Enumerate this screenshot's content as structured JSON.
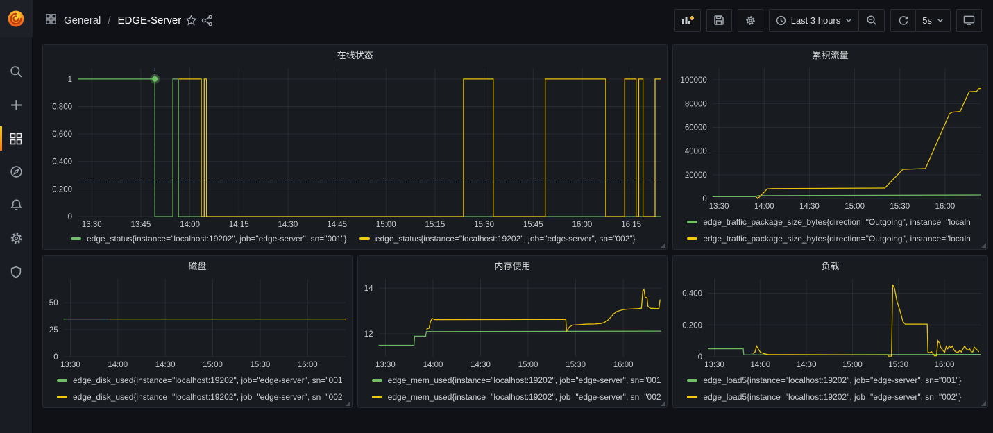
{
  "colors": {
    "series_green": "#73bf69",
    "series_yellow": "#f2cc0c",
    "annotation_dash": "#87a1c4",
    "active_indicator_orange": "#ff780a"
  },
  "sidebar": {
    "icons": [
      "grafana-logo",
      "search",
      "add",
      "dashboards",
      "explore",
      "alerting",
      "configuration",
      "server-admin"
    ],
    "active_item": "dashboards"
  },
  "header": {
    "breadcrumb": {
      "section": "General",
      "separator": "/",
      "title": "EDGE-Server"
    },
    "toolbar": {
      "time_range_label": "Last 3 hours",
      "refresh_interval": "5s"
    }
  },
  "panels": [
    {
      "title": "在线状态",
      "legend_layout": "row",
      "legend": [
        {
          "color": "#73bf69",
          "label": "edge_status{instance=\"localhost:19202\", job=\"edge-server\", sn=\"001\"}"
        },
        {
          "color": "#f2cc0c",
          "label": "edge_status{instance=\"localhost:19202\", job=\"edge-server\", sn=\"002\"}"
        }
      ]
    },
    {
      "title": "累积流量",
      "legend_layout": "column",
      "legend": [
        {
          "color": "#73bf69",
          "label": "edge_traffic_package_size_bytes{direction=\"Outgoing\", instance=\"localh"
        },
        {
          "color": "#f2cc0c",
          "label": "edge_traffic_package_size_bytes{direction=\"Outgoing\", instance=\"localh"
        }
      ]
    },
    {
      "title": "磁盘",
      "legend_layout": "column",
      "legend": [
        {
          "color": "#73bf69",
          "label": "edge_disk_used{instance=\"localhost:19202\", job=\"edge-server\", sn=\"001"
        },
        {
          "color": "#f2cc0c",
          "label": "edge_disk_used{instance=\"localhost:19202\", job=\"edge-server\", sn=\"002"
        }
      ]
    },
    {
      "title": "内存使用",
      "legend_layout": "column",
      "legend": [
        {
          "color": "#73bf69",
          "label": "edge_mem_used{instance=\"localhost:19202\", job=\"edge-server\", sn=\"001"
        },
        {
          "color": "#f2cc0c",
          "label": "edge_mem_used{instance=\"localhost:19202\", job=\"edge-server\", sn=\"002"
        }
      ]
    },
    {
      "title": "负载",
      "legend_layout": "column",
      "legend": [
        {
          "color": "#73bf69",
          "label": "edge_load5{instance=\"localhost:19202\", job=\"edge-server\", sn=\"001\"}"
        },
        {
          "color": "#f2cc0c",
          "label": "edge_load5{instance=\"localhost:19202\", job=\"edge-server\", sn=\"002\"}"
        }
      ]
    }
  ],
  "chart_data": [
    {
      "type": "line",
      "title": "在线状态",
      "x_unit": "minutes after 13:00",
      "x_range": [
        25.7,
        204
      ],
      "y_range": [
        0,
        1.08
      ],
      "xticks": [
        {
          "v": 30,
          "label": "13:30"
        },
        {
          "v": 45,
          "label": "13:45"
        },
        {
          "v": 60,
          "label": "14:00"
        },
        {
          "v": 75,
          "label": "14:15"
        },
        {
          "v": 90,
          "label": "14:30"
        },
        {
          "v": 105,
          "label": "14:45"
        },
        {
          "v": 120,
          "label": "15:00"
        },
        {
          "v": 135,
          "label": "15:15"
        },
        {
          "v": 150,
          "label": "15:30"
        },
        {
          "v": 165,
          "label": "15:45"
        },
        {
          "v": 180,
          "label": "16:00"
        },
        {
          "v": 195,
          "label": "16:15"
        }
      ],
      "yticks": [
        {
          "v": 1,
          "label": "1"
        },
        {
          "v": 0.8,
          "label": "0.800"
        },
        {
          "v": 0.6,
          "label": "0.600"
        },
        {
          "v": 0.4,
          "label": "0.400"
        },
        {
          "v": 0.2,
          "label": "0.200"
        },
        {
          "v": 0,
          "label": "0"
        }
      ],
      "series": [
        {
          "name": "edge_status sn=001",
          "color": "#73bf69",
          "points": [
            [
              25.7,
              1
            ],
            [
              49.3,
              1
            ],
            [
              49.3,
              0
            ],
            [
              54.8,
              0
            ],
            [
              54.8,
              1
            ],
            [
              56.5,
              1
            ],
            [
              56.5,
              0
            ],
            [
              204,
              0
            ]
          ]
        },
        {
          "name": "edge_status sn=002",
          "color": "#f2cc0c",
          "points": [
            [
              56.7,
              1
            ],
            [
              63.5,
              1
            ],
            [
              63.5,
              0
            ],
            [
              64.4,
              0
            ],
            [
              64.4,
              1
            ],
            [
              65.1,
              1
            ],
            [
              65.1,
              0
            ],
            [
              143.7,
              0
            ],
            [
              143.7,
              1
            ],
            [
              152.8,
              1
            ],
            [
              152.8,
              0
            ],
            [
              168.7,
              0
            ],
            [
              168.7,
              1
            ],
            [
              187.2,
              1
            ],
            [
              187.2,
              0
            ],
            [
              193,
              0
            ],
            [
              193,
              1
            ],
            [
              196.5,
              1
            ],
            [
              196.5,
              0
            ],
            [
              197.3,
              0
            ],
            [
              197.3,
              1
            ],
            [
              198.6,
              1
            ],
            [
              198.6,
              0
            ],
            [
              202.3,
              0
            ],
            [
              202.3,
              1
            ],
            [
              204,
              1
            ]
          ]
        }
      ],
      "annotations": {
        "vline": 49.3,
        "hline": 0.25,
        "point": [
          49.3,
          1
        ]
      }
    },
    {
      "type": "line",
      "title": "累积流量",
      "x_unit": "minutes after 13:00",
      "x_range": [
        25.7,
        204
      ],
      "y_range": [
        0,
        110000
      ],
      "xticks": [
        {
          "v": 30,
          "label": "13:30"
        },
        {
          "v": 60,
          "label": "14:00"
        },
        {
          "v": 90,
          "label": "14:30"
        },
        {
          "v": 120,
          "label": "15:00"
        },
        {
          "v": 150,
          "label": "15:30"
        },
        {
          "v": 180,
          "label": "16:00"
        }
      ],
      "yticks": [
        {
          "v": 100000,
          "label": "100000"
        },
        {
          "v": 80000,
          "label": "80000"
        },
        {
          "v": 60000,
          "label": "60000"
        },
        {
          "v": 40000,
          "label": "40000"
        },
        {
          "v": 20000,
          "label": "20000"
        },
        {
          "v": 0,
          "label": "0"
        }
      ],
      "series": [
        {
          "name": "edge_traffic outgoing sn=001",
          "color": "#73bf69",
          "points": [
            [
              25.7,
              1600
            ],
            [
              54,
              1600
            ],
            [
              56,
              2400
            ],
            [
              204,
              2900
            ]
          ]
        },
        {
          "name": "edge_traffic outgoing sn=002",
          "color": "#f2cc0c",
          "points": [
            [
              55,
              1200
            ],
            [
              55.6,
              0
            ],
            [
              57,
              1500
            ],
            [
              62,
              8000
            ],
            [
              65,
              8300
            ],
            [
              140,
              8800
            ],
            [
              152,
              24500
            ],
            [
              167,
              25200
            ],
            [
              183,
              71500
            ],
            [
              185,
              72800
            ],
            [
              190,
              73300
            ],
            [
              196,
              90000
            ],
            [
              201,
              90300
            ],
            [
              202,
              92500
            ],
            [
              204,
              92800
            ]
          ]
        }
      ],
      "annotations": {}
    },
    {
      "type": "line",
      "title": "磁盘",
      "x_unit": "minutes after 13:00",
      "x_range": [
        25.7,
        204
      ],
      "y_range": [
        0,
        72
      ],
      "xticks": [
        {
          "v": 30,
          "label": "13:30"
        },
        {
          "v": 60,
          "label": "14:00"
        },
        {
          "v": 90,
          "label": "14:30"
        },
        {
          "v": 120,
          "label": "15:00"
        },
        {
          "v": 150,
          "label": "15:30"
        },
        {
          "v": 180,
          "label": "16:00"
        }
      ],
      "yticks": [
        {
          "v": 50,
          "label": "50"
        },
        {
          "v": 25,
          "label": "25"
        },
        {
          "v": 0,
          "label": "0"
        }
      ],
      "series": [
        {
          "name": "edge_disk_used sn=001",
          "color": "#73bf69",
          "points": [
            [
              25.7,
              35
            ],
            [
              55.3,
              35
            ]
          ]
        },
        {
          "name": "edge_disk_used sn=002",
          "color": "#f2cc0c",
          "points": [
            [
              55.3,
              35
            ],
            [
              204,
              35
            ]
          ]
        }
      ],
      "annotations": {}
    },
    {
      "type": "line",
      "title": "内存使用",
      "x_unit": "minutes after 13:00",
      "x_range": [
        25.7,
        204
      ],
      "y_range": [
        11,
        14.4
      ],
      "xticks": [
        {
          "v": 30,
          "label": "13:30"
        },
        {
          "v": 60,
          "label": "14:00"
        },
        {
          "v": 90,
          "label": "14:30"
        },
        {
          "v": 120,
          "label": "15:00"
        },
        {
          "v": 150,
          "label": "15:30"
        },
        {
          "v": 180,
          "label": "16:00"
        }
      ],
      "yticks": [
        {
          "v": 14,
          "label": "14"
        },
        {
          "v": 12,
          "label": "12"
        }
      ],
      "series": [
        {
          "name": "edge_mem_used sn=001",
          "color": "#73bf69",
          "points": [
            [
              25.7,
              11.5
            ],
            [
              48,
              11.5
            ],
            [
              48.4,
              11.9
            ],
            [
              55.4,
              11.9
            ],
            [
              55.8,
              12.1
            ],
            [
              204,
              12.12
            ]
          ]
        },
        {
          "name": "edge_mem_used sn=002",
          "color": "#f2cc0c",
          "points": [
            [
              55.8,
              12.2
            ],
            [
              57.5,
              12.25
            ],
            [
              58.5,
              12.55
            ],
            [
              59.5,
              12.68
            ],
            [
              61,
              12.62
            ],
            [
              143.8,
              12.63
            ],
            [
              144.2,
              12.12
            ],
            [
              146,
              12.3
            ],
            [
              148,
              12.38
            ],
            [
              152,
              12.4
            ],
            [
              156,
              12.42
            ],
            [
              162,
              12.43
            ],
            [
              166,
              12.45
            ],
            [
              168,
              12.5
            ],
            [
              170,
              12.58
            ],
            [
              172,
              12.72
            ],
            [
              174,
              12.88
            ],
            [
              176,
              12.98
            ],
            [
              178,
              13.02
            ],
            [
              180,
              13.06
            ],
            [
              183,
              13.08
            ],
            [
              189,
              13.1
            ],
            [
              191.5,
              13.12
            ],
            [
              192.3,
              13.88
            ],
            [
              193,
              13.95
            ],
            [
              193.8,
              13.6
            ],
            [
              195,
              13.58
            ],
            [
              195.6,
              13.2
            ],
            [
              197,
              13.12
            ],
            [
              201.5,
              13.1
            ],
            [
              202.5,
              13.12
            ],
            [
              203.2,
              13.5
            ]
          ]
        }
      ],
      "annotations": {}
    },
    {
      "type": "line",
      "title": "负载",
      "x_unit": "minutes after 13:00",
      "x_range": [
        25.7,
        204
      ],
      "y_range": [
        0,
        0.49
      ],
      "xticks": [
        {
          "v": 30,
          "label": "13:30"
        },
        {
          "v": 60,
          "label": "14:00"
        },
        {
          "v": 90,
          "label": "14:30"
        },
        {
          "v": 120,
          "label": "15:00"
        },
        {
          "v": 150,
          "label": "15:30"
        },
        {
          "v": 180,
          "label": "16:00"
        }
      ],
      "yticks": [
        {
          "v": 0.4,
          "label": "0.400"
        },
        {
          "v": 0.2,
          "label": "0.200"
        },
        {
          "v": 0,
          "label": "0"
        }
      ],
      "series": [
        {
          "name": "edge_load5 sn=001",
          "color": "#73bf69",
          "points": [
            [
              25.7,
              0.05
            ],
            [
              48.8,
              0.05
            ],
            [
              49.2,
              0.012
            ],
            [
              204,
              0.015
            ]
          ]
        },
        {
          "name": "edge_load5 sn=002",
          "color": "#f2cc0c",
          "points": [
            [
              55,
              0.02
            ],
            [
              56.5,
              0.03
            ],
            [
              57.5,
              0.068
            ],
            [
              58.5,
              0.05
            ],
            [
              60,
              0.028
            ],
            [
              62,
              0.02
            ],
            [
              65,
              0.014
            ],
            [
              120,
              0.012
            ],
            [
              143,
              0.012
            ],
            [
              143.5,
              0.004
            ],
            [
              145.5,
              0.004
            ],
            [
              146.3,
              0.455
            ],
            [
              147.5,
              0.43
            ],
            [
              149,
              0.35
            ],
            [
              151,
              0.29
            ],
            [
              153,
              0.22
            ],
            [
              154.5,
              0.205
            ],
            [
              168.8,
              0.205
            ],
            [
              169.2,
              0.03
            ],
            [
              170.5,
              0.025
            ],
            [
              171.5,
              0.032
            ],
            [
              172.5,
              0.02
            ],
            [
              173.5,
              0.006
            ],
            [
              174.8,
              0.006
            ],
            [
              175.8,
              0.1
            ],
            [
              176.8,
              0.085
            ],
            [
              177.8,
              0.055
            ],
            [
              179,
              0.04
            ],
            [
              180.2,
              0.028
            ],
            [
              181.2,
              0.065
            ],
            [
              182.2,
              0.05
            ],
            [
              183.2,
              0.068
            ],
            [
              184.2,
              0.055
            ],
            [
              185.2,
              0.068
            ],
            [
              186.2,
              0.042
            ],
            [
              187.5,
              0.03
            ],
            [
              189,
              0.028
            ],
            [
              190,
              0.04
            ],
            [
              191,
              0.03
            ],
            [
              192.2,
              0.05
            ],
            [
              193.2,
              0.068
            ],
            [
              194.2,
              0.05
            ],
            [
              195.5,
              0.042
            ],
            [
              196.5,
              0.05
            ],
            [
              197.5,
              0.032
            ],
            [
              198.5,
              0.03
            ],
            [
              199.5,
              0.06
            ],
            [
              200.5,
              0.05
            ],
            [
              201.5,
              0.042
            ],
            [
              202.5,
              0.03
            ]
          ]
        }
      ],
      "annotations": {}
    }
  ]
}
